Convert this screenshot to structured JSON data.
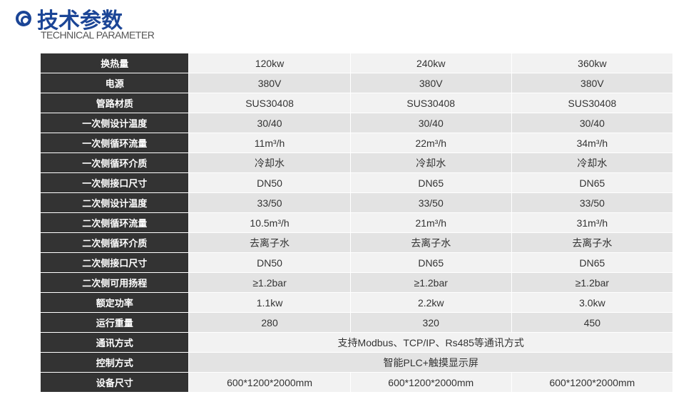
{
  "header": {
    "title": "技术参数",
    "subtitle": "TECHNICAL PARAMETER",
    "accent": "#1b4596"
  },
  "rows": [
    {
      "label": "换热量",
      "values": [
        "120kw",
        "240kw",
        "360kw"
      ]
    },
    {
      "label": "电源",
      "values": [
        "380V",
        "380V",
        "380V"
      ]
    },
    {
      "label": "管路材质",
      "values": [
        "SUS30408",
        "SUS30408",
        "SUS30408"
      ]
    },
    {
      "label": "一次侧设计温度",
      "values": [
        "30/40",
        "30/40",
        "30/40"
      ]
    },
    {
      "label": "一次侧循环流量",
      "values": [
        "11m³/h",
        "22m³/h",
        "34m³/h"
      ]
    },
    {
      "label": "一次侧循环介质",
      "values": [
        "冷却水",
        "冷却水",
        "冷却水"
      ]
    },
    {
      "label": "一次侧接口尺寸",
      "values": [
        "DN50",
        "DN65",
        "DN65"
      ]
    },
    {
      "label": "二次侧设计温度",
      "values": [
        "33/50",
        "33/50",
        "33/50"
      ]
    },
    {
      "label": "二次侧循环流量",
      "values": [
        "10.5m³/h",
        "21m³/h",
        "31m³/h"
      ]
    },
    {
      "label": "二次侧循环介质",
      "values": [
        "去离子水",
        "去离子水",
        "去离子水"
      ]
    },
    {
      "label": "二次侧接口尺寸",
      "values": [
        "DN50",
        "DN65",
        "DN65"
      ]
    },
    {
      "label": "二次侧可用扬程",
      "values": [
        "≥1.2bar",
        "≥1.2bar",
        "≥1.2bar"
      ]
    },
    {
      "label": "额定功率",
      "values": [
        "1.1kw",
        "2.2kw",
        "3.0kw"
      ]
    },
    {
      "label": "运行重量",
      "values": [
        "280",
        "320",
        "450"
      ]
    },
    {
      "label": "通讯方式",
      "values": [
        "支持Modbus、TCP/IP、Rs485等通讯方式"
      ]
    },
    {
      "label": "控制方式",
      "values": [
        "智能PLC+触摸显示屏"
      ]
    },
    {
      "label": "设备尺寸",
      "values": [
        "600*1200*2000mm",
        "600*1200*2000mm",
        "600*1200*2000mm"
      ]
    }
  ]
}
